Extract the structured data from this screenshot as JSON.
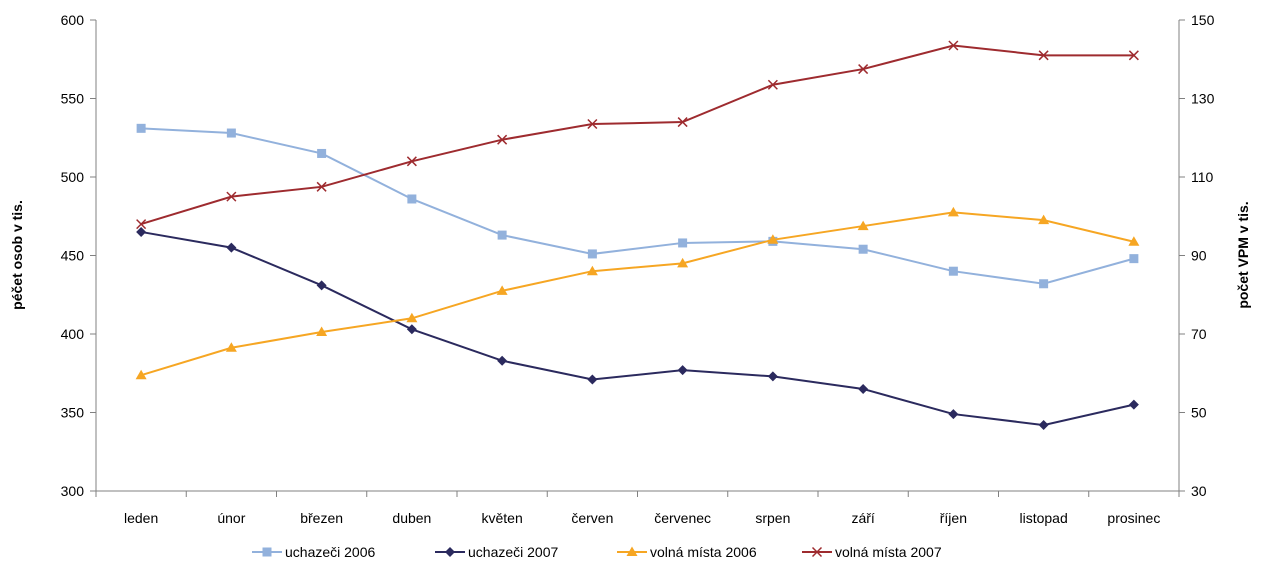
{
  "chart_data": {
    "type": "line",
    "categories": [
      "leden",
      "únor",
      "březen",
      "duben",
      "květen",
      "červen",
      "červenec",
      "srpen",
      "září",
      "říjen",
      "listopad",
      "prosinec"
    ],
    "y_left": {
      "label": "péčet osob v tis.",
      "ylim": [
        300,
        600
      ],
      "ticks": [
        "300",
        "350",
        "400",
        "450",
        "500",
        "550",
        "600"
      ]
    },
    "y_right": {
      "label": "počet VPM v tis.",
      "ylim": [
        30,
        150
      ],
      "ticks": [
        "30",
        "50",
        "70",
        "90",
        "110",
        "130",
        "150"
      ]
    },
    "series": [
      {
        "name": "uchazeči 2006",
        "axis": "left",
        "color": "#92B1DC",
        "marker": "square",
        "values": [
          531,
          528,
          515,
          486,
          463,
          451,
          458,
          459,
          454,
          440,
          432,
          448
        ]
      },
      {
        "name": "uchazeči 2007",
        "axis": "left",
        "color": "#2B2A5E",
        "marker": "diamond",
        "values": [
          465,
          455,
          431,
          403,
          383,
          371,
          377,
          373,
          365,
          349,
          342,
          355
        ]
      },
      {
        "name": "volná místa 2006",
        "axis": "right",
        "color": "#F6A623",
        "marker": "triangle",
        "values": [
          59.5,
          66.5,
          70.5,
          74,
          81,
          86,
          88,
          94,
          97.5,
          101,
          99,
          93.5
        ]
      },
      {
        "name": "volná místa 2007",
        "axis": "right",
        "color": "#9E2B2F",
        "marker": "x",
        "values": [
          98,
          105,
          107.5,
          114,
          119.5,
          123.5,
          124,
          133.5,
          137.5,
          143.5,
          141,
          141
        ]
      }
    ],
    "grid": false,
    "legend_position": "bottom"
  }
}
